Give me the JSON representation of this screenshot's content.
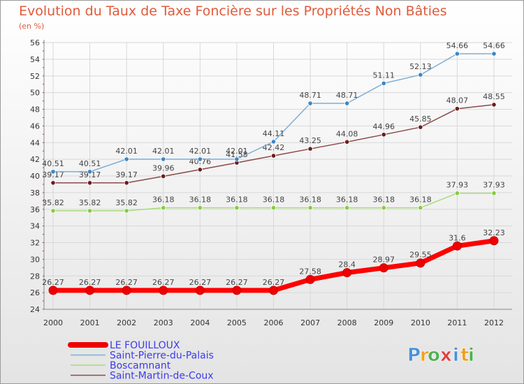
{
  "chart_data": {
    "type": "line",
    "title": "Evolution du Taux de Taxe Foncière sur les Propriétés Non Bâties",
    "subtitle": "(en %)",
    "x": [
      "2000",
      "2001",
      "2002",
      "2003",
      "2004",
      "2005",
      "2006",
      "2007",
      "2008",
      "2009",
      "2010",
      "2011",
      "2012"
    ],
    "ylim": [
      24,
      56
    ],
    "yticks": [
      24,
      26,
      28,
      30,
      32,
      34,
      36,
      38,
      40,
      42,
      44,
      46,
      48,
      50,
      52,
      54,
      56
    ],
    "grid": true,
    "legend_position": "bottom-left",
    "series": [
      {
        "name": "LE FOUILLOUX",
        "color": "#ff0000",
        "values": [
          26.27,
          26.27,
          26.27,
          26.27,
          26.27,
          26.27,
          26.27,
          27.58,
          28.4,
          28.97,
          29.55,
          31.6,
          32.23
        ],
        "labels": [
          "26.27",
          "26.27",
          "26.27",
          "26.27",
          "26.27",
          "26.27",
          "26.27",
          "27.58",
          "28.4",
          "28.97",
          "29.55",
          "31.6",
          "32.23"
        ]
      },
      {
        "name": "Saint-Pierre-du-Palais",
        "color": "#7eaed6",
        "marker_color": "#3b86c6",
        "values": [
          40.51,
          40.51,
          42.01,
          42.01,
          42.01,
          42.01,
          44.11,
          48.71,
          48.71,
          51.11,
          52.13,
          54.66,
          54.66
        ],
        "labels": [
          "40.51",
          "40.51",
          "42.01",
          "42.01",
          "42.01",
          "42.01",
          "44.11",
          "48.71",
          "48.71",
          "51.11",
          "52.13",
          "54.66",
          "54.66"
        ]
      },
      {
        "name": "Boscamnant",
        "color": "#a8dc7a",
        "marker_color": "#86cc3c",
        "values": [
          35.82,
          35.82,
          35.82,
          36.18,
          36.18,
          36.18,
          36.18,
          36.18,
          36.18,
          36.18,
          36.18,
          37.93,
          37.93
        ],
        "labels": [
          "35.82",
          "35.82",
          "35.82",
          "36.18",
          "36.18",
          "36.18",
          "36.18",
          "36.18",
          "36.18",
          "36.18",
          "36.18",
          "37.93",
          "37.93"
        ]
      },
      {
        "name": "Saint-Martin-de-Coux",
        "color": "#8a4a4a",
        "marker_color": "#6e1c1c",
        "values": [
          39.17,
          39.17,
          39.17,
          39.96,
          40.76,
          41.58,
          42.42,
          43.25,
          44.08,
          44.96,
          45.85,
          48.07,
          48.55
        ],
        "labels": [
          "39.17",
          "39.17",
          "39.17",
          "39.96",
          "40.76",
          "41.58",
          "42.42",
          "43.25",
          "44.08",
          "44.96",
          "45.85",
          "48.07",
          "48.55"
        ]
      }
    ]
  },
  "branding": {
    "logo_text": "Proxiti",
    "letters": [
      "P",
      "r",
      "o",
      "x",
      "i",
      "t",
      "i"
    ],
    "letter_colors": [
      "#4a90d9",
      "#f0a020",
      "#50b050",
      "#e04040",
      "#4a90d9",
      "#f0a020",
      "#50b050"
    ]
  }
}
